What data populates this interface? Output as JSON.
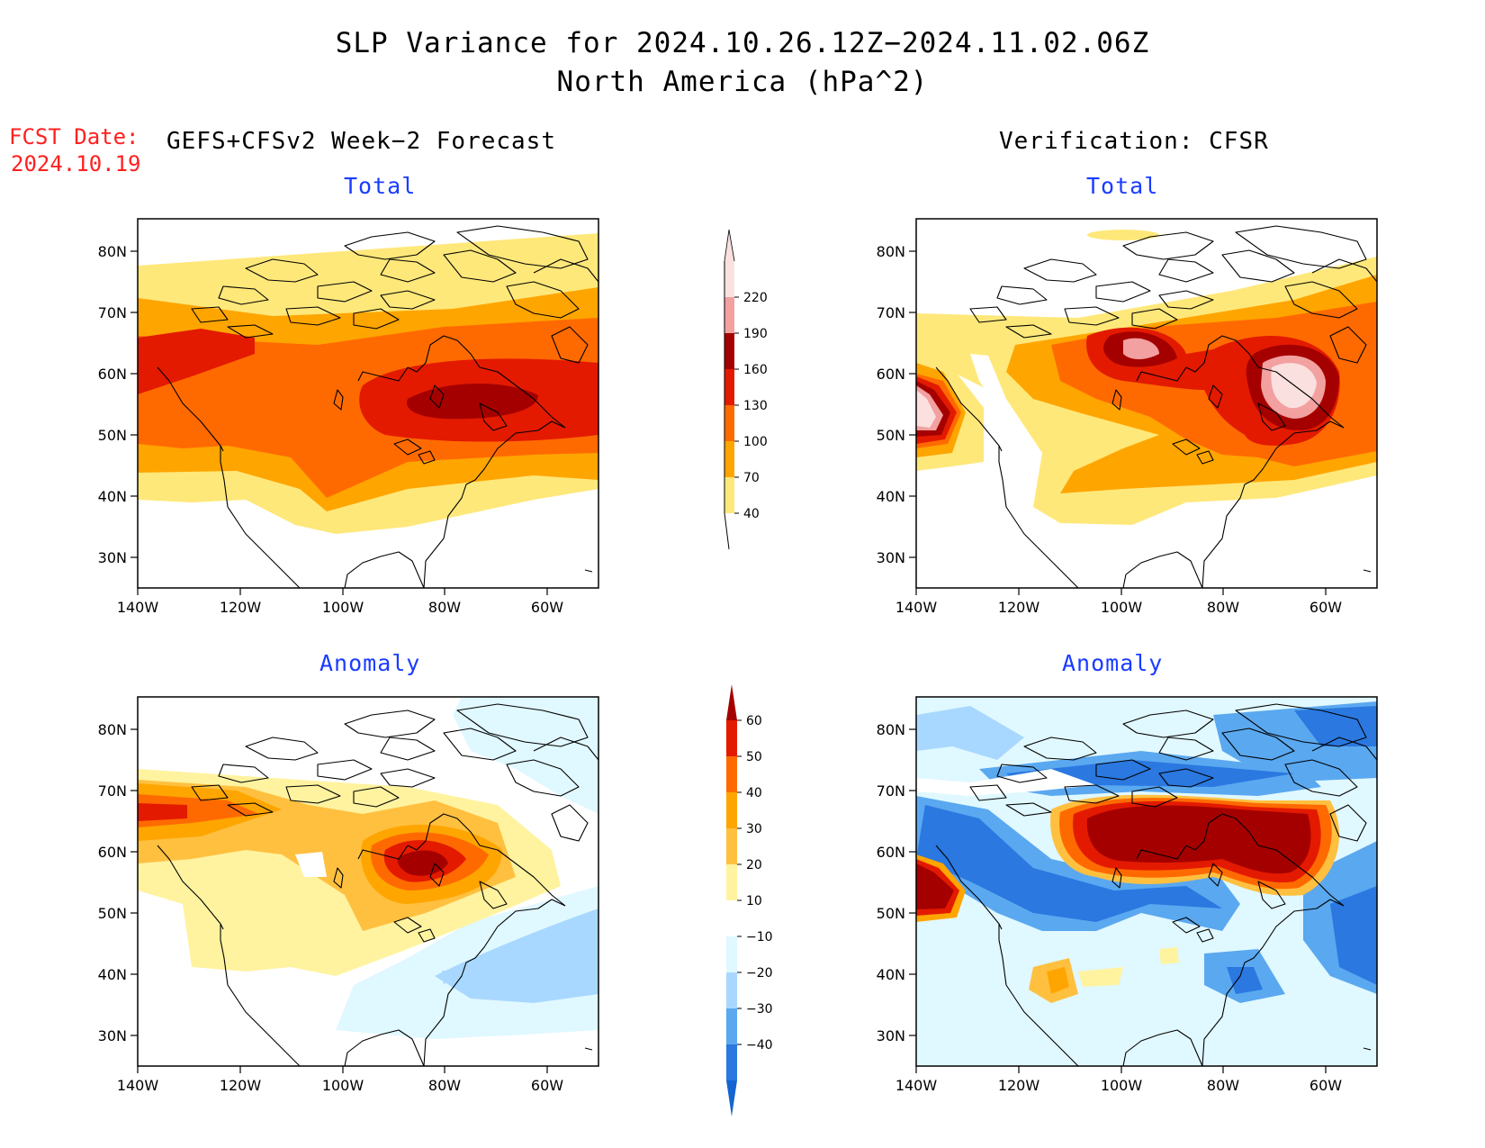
{
  "header": {
    "title": "SLP Variance for 2024.10.26.12Z−2024.11.02.06Z",
    "subtitle": "North America (hPa^2)",
    "fcst_label": "FCST Date:",
    "fcst_date": "2024.10.19",
    "left_heading": "GEFS+CFSv2 Week−2 Forecast",
    "right_heading": "Verification: CFSR"
  },
  "panels": [
    {
      "id": "fcst-total",
      "label": "Total"
    },
    {
      "id": "verif-total",
      "label": "Total"
    },
    {
      "id": "fcst-anomaly",
      "label": "Anomaly"
    },
    {
      "id": "verif-anomaly",
      "label": "Anomaly"
    }
  ],
  "axes": {
    "lat_labels": [
      "80N",
      "70N",
      "60N",
      "50N",
      "40N",
      "30N"
    ],
    "lon_labels": [
      "140W",
      "120W",
      "100W",
      "80W",
      "60W"
    ]
  },
  "colorbars": {
    "total": {
      "levels": [
        "40",
        "70",
        "100",
        "130",
        "160",
        "190",
        "220"
      ],
      "colors": [
        "#ffe87a",
        "#ffa500",
        "#ff6a00",
        "#e31a00",
        "#a50000",
        "#f2a0a0",
        "#fbe0e0"
      ]
    },
    "anomaly": {
      "levels": [
        "60",
        "50",
        "40",
        "30",
        "20",
        "10",
        "−10",
        "−20",
        "−30",
        "−40"
      ],
      "colors": [
        "#a50000",
        "#e31a00",
        "#ff6a00",
        "#ffa500",
        "#ffc040",
        "#fff3a0",
        "#ffffff",
        "#e0f8ff",
        "#a8d8ff",
        "#5aa8f0",
        "#2a78e0",
        "#1464d2"
      ]
    }
  }
}
